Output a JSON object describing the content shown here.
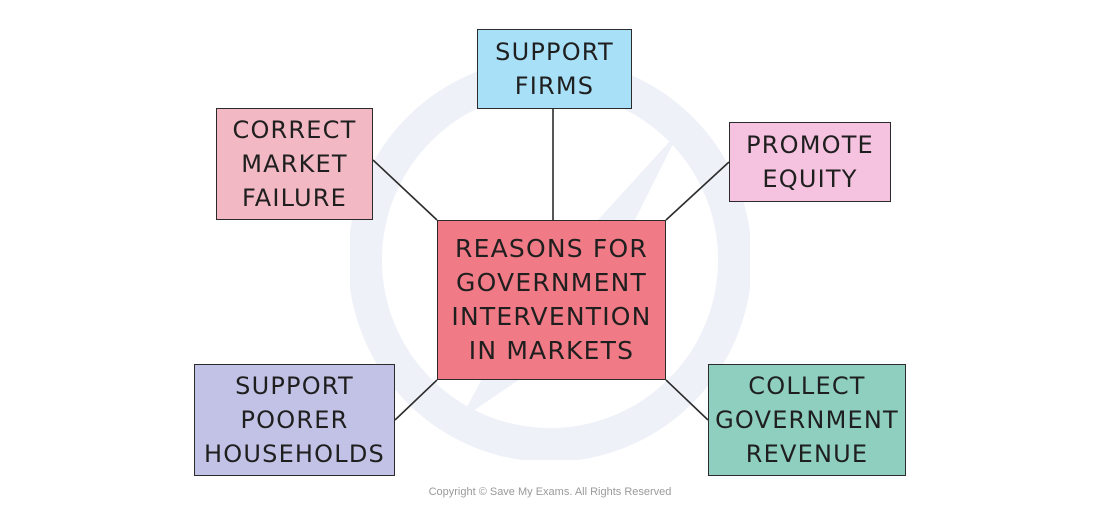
{
  "colors": {
    "center": "#f07a85",
    "support_firms": "#a8e0f8",
    "correct_market_failure": "#f2b8c4",
    "promote_equity": "#f5c2df",
    "support_poorer_households": "#c2c2e6",
    "collect_government_revenue": "#8ecfc0",
    "connector": "#2b2b2b",
    "watermark": "#eef1f8"
  },
  "diagram": {
    "center": {
      "lines": [
        "REASONS FOR",
        "GOVERNMENT",
        "INTERVENTION",
        "IN MARKETS"
      ]
    },
    "branches": [
      {
        "id": "support_firms",
        "lines": [
          "SUPPORT",
          "FIRMS"
        ]
      },
      {
        "id": "correct_market_failure",
        "lines": [
          "CORRECT",
          "MARKET",
          "FAILURE"
        ]
      },
      {
        "id": "promote_equity",
        "lines": [
          "PROMOTE",
          "EQUITY"
        ]
      },
      {
        "id": "support_poorer_households",
        "lines": [
          "SUPPORT",
          "POORER",
          "HOUSEHOLDS"
        ]
      },
      {
        "id": "collect_government_revenue",
        "lines": [
          "COLLECT",
          "GOVERNMENT",
          "REVENUE"
        ]
      }
    ]
  },
  "footer": {
    "copyright": "Copyright © Save My Exams. All Rights Reserved"
  }
}
